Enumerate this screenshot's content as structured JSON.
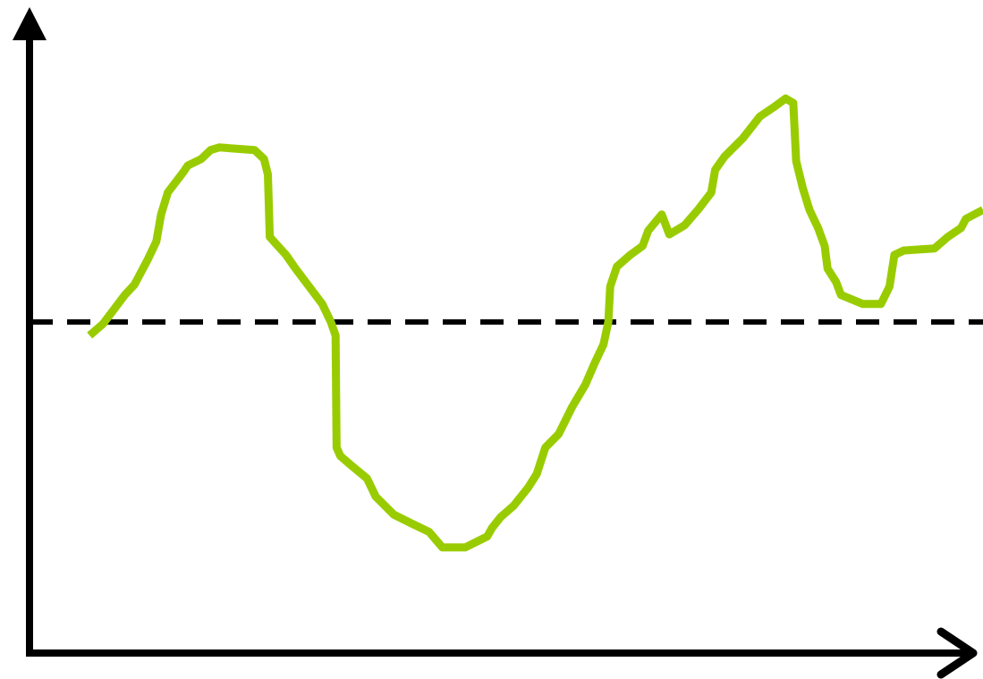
{
  "chart_data": {
    "type": "line",
    "x": [
      6.3,
      7.7,
      10.0,
      11.0,
      12.4,
      13.3,
      13.8,
      14.5,
      16.1,
      16.6,
      18.0,
      19.0,
      19.9,
      23.6,
      24.6,
      25.0,
      25.2,
      26.9,
      27.9,
      30.7,
      31.6,
      32.1,
      32.2,
      32.6,
      33.7,
      35.4,
      36.3,
      38.2,
      40.1,
      41.9,
      43.3,
      45.7,
      48.0,
      48.5,
      49.4,
      50.8,
      52.3,
      53.2,
      54.1,
      55.5,
      56.9,
      58.3,
      59.3,
      60.2,
      60.7,
      60.9,
      61.6,
      63.0,
      64.3,
      64.9,
      66.3,
      67.1,
      68.7,
      70.1,
      71.5,
      71.9,
      72.9,
      74.8,
      76.6,
      78.0,
      79.3,
      80.1,
      80.4,
      81.1,
      81.8,
      82.7,
      83.4,
      83.7,
      84.6,
      85.1,
      87.4,
      89.3,
      90.2,
      90.7,
      91.7,
      94.9,
      96.3,
      97.7,
      98.2,
      100.0
    ],
    "values": [
      49.3,
      51.1,
      55.6,
      57.2,
      61.1,
      63.9,
      68.1,
      71.5,
      74.6,
      75.7,
      76.7,
      78.1,
      78.5,
      78.1,
      76.7,
      74.3,
      64.6,
      61.8,
      59.7,
      54.2,
      51.4,
      49.3,
      31.9,
      30.6,
      29.2,
      27.1,
      24.3,
      21.5,
      20.1,
      18.8,
      16.4,
      16.4,
      18.1,
      19.4,
      21.1,
      22.9,
      25.7,
      27.8,
      31.9,
      34.0,
      38.2,
      41.7,
      45.1,
      47.9,
      51.4,
      56.9,
      60.0,
      61.8,
      63.2,
      65.6,
      68.1,
      65.0,
      66.4,
      68.8,
      71.5,
      75.0,
      77.1,
      79.9,
      83.3,
      84.7,
      86.1,
      85.4,
      76.4,
      72.2,
      68.8,
      66.0,
      63.2,
      59.7,
      57.6,
      55.6,
      54.2,
      54.2,
      56.9,
      61.8,
      62.5,
      62.8,
      64.6,
      66.0,
      67.4,
      68.8
    ],
    "color": "#99cc00",
    "reference_line": 51.4,
    "xlim": [
      0,
      100
    ],
    "ylim": [
      0,
      100
    ]
  }
}
